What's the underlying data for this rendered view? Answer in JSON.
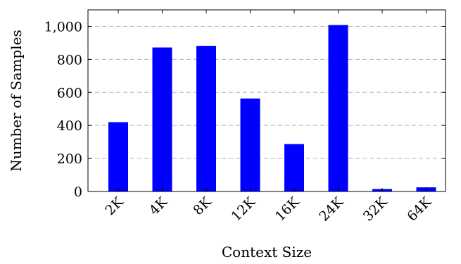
{
  "chart_data": {
    "type": "bar",
    "categories": [
      "2K",
      "4K",
      "8K",
      "12K",
      "16K",
      "24K",
      "32K",
      "64K"
    ],
    "values": [
      420,
      872,
      882,
      563,
      287,
      1008,
      15,
      25
    ],
    "xlabel": "Context Size",
    "ylabel": "Number of Samples",
    "ylim": [
      0,
      1100
    ],
    "yticks": [
      0,
      200,
      400,
      600,
      800,
      1000
    ],
    "ytick_labels": [
      "0",
      "200",
      "400",
      "600",
      "800",
      "1,000"
    ],
    "grid": "horizontal-dashed",
    "bar_color": "#0000ff"
  }
}
